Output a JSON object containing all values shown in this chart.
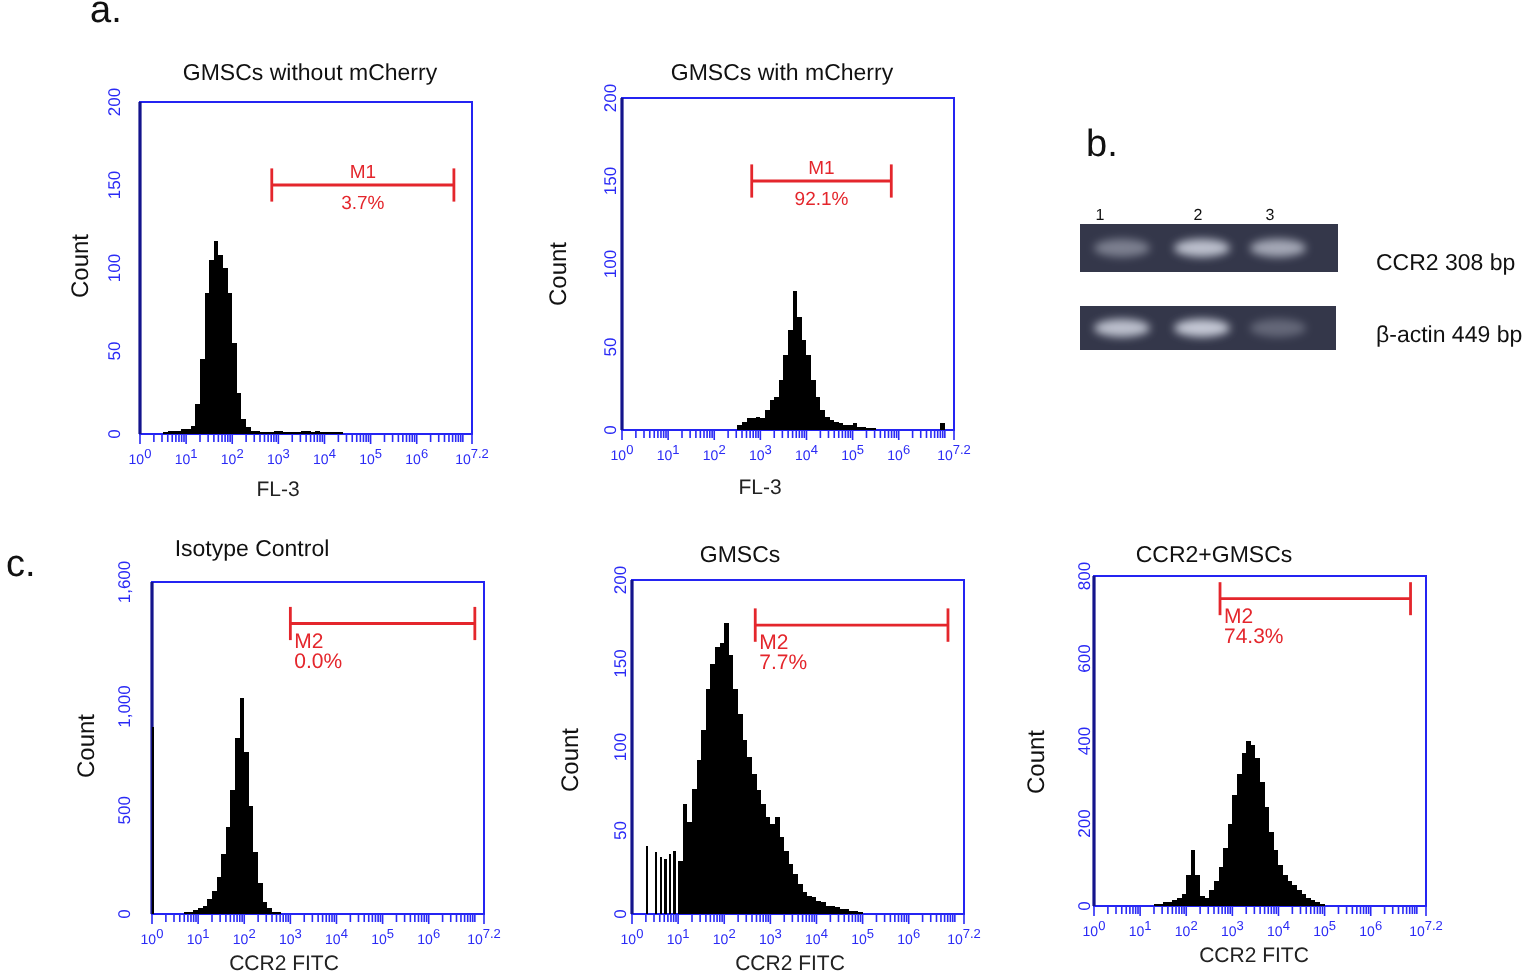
{
  "chart_data": [
    {
      "type": "histogram",
      "title": "GMSCs without mCherry",
      "xlabel": "FL-3",
      "ylabel": "Count",
      "log": "x",
      "xlim": [
        1,
        15800000
      ],
      "ylim": [
        0,
        200
      ],
      "xticks": [
        {
          "value": 1,
          "label": "10$^{0}$"
        },
        {
          "value": 2,
          "label": null
        },
        {
          "value": 3,
          "label": null
        },
        {
          "value": 4,
          "label": null
        },
        {
          "value": 5,
          "label": null
        },
        {
          "value": 6,
          "label": null
        },
        {
          "value": 7,
          "label": null
        },
        {
          "value": 8,
          "label": null
        },
        {
          "value": 9,
          "label": null
        },
        {
          "value": 10,
          "label": "10$^{1}$"
        },
        {
          "value": 20,
          "label": null
        },
        {
          "value": 30,
          "label": null
        },
        {
          "value": 40,
          "label": null
        },
        {
          "value": 50,
          "label": null
        },
        {
          "value": 60,
          "label": null
        },
        {
          "value": 70,
          "label": null
        },
        {
          "value": 80,
          "label": null
        },
        {
          "value": 90,
          "label": null
        },
        {
          "value": 100,
          "label": "10$^{2}$"
        },
        {
          "value": 200,
          "label": null
        },
        {
          "value": 300,
          "label": null
        },
        {
          "value": 400,
          "label": null
        },
        {
          "value": 500,
          "label": null
        },
        {
          "value": 600,
          "label": null
        },
        {
          "value": 700,
          "label": null
        },
        {
          "value": 800,
          "label": null
        },
        {
          "value": 900,
          "label": null
        },
        {
          "value": 1000,
          "label": "10$^{3}$"
        },
        {
          "value": 2000,
          "label": null
        },
        {
          "value": 3000,
          "label": null
        },
        {
          "value": 4000,
          "label": null
        },
        {
          "value": 5000,
          "label": null
        },
        {
          "value": 6000,
          "label": null
        },
        {
          "value": 7000,
          "label": null
        },
        {
          "value": 8000,
          "label": null
        },
        {
          "value": 9000,
          "label": null
        },
        {
          "value": 10000,
          "label": "10$^{4}$"
        },
        {
          "value": 20000,
          "label": null
        },
        {
          "value": 30000,
          "label": null
        },
        {
          "value": 40000,
          "label": null
        },
        {
          "value": 50000,
          "label": null
        },
        {
          "value": 60000,
          "label": null
        },
        {
          "value": 70000,
          "label": null
        },
        {
          "value": 80000,
          "label": null
        },
        {
          "value": 90000,
          "label": null
        },
        {
          "value": 100000,
          "label": "10$^{5}$"
        },
        {
          "value": 200000,
          "label": null
        },
        {
          "value": 300000,
          "label": null
        },
        {
          "value": 400000,
          "label": null
        },
        {
          "value": 500000,
          "label": null
        },
        {
          "value": 600000,
          "label": null
        },
        {
          "value": 700000,
          "label": null
        },
        {
          "value": 800000,
          "label": null
        },
        {
          "value": 900000,
          "label": null
        },
        {
          "value": 1000000,
          "label": "10$^{6}$"
        },
        {
          "value": 2000000,
          "label": null
        },
        {
          "value": 3000000,
          "label": null
        },
        {
          "value": 4000000,
          "label": null
        },
        {
          "value": 5000000,
          "label": null
        },
        {
          "value": 6000000,
          "label": null
        },
        {
          "value": 7000000,
          "label": null
        },
        {
          "value": 8000000,
          "label": null
        },
        {
          "value": 9000000,
          "label": null
        },
        {
          "value": 10000000,
          "label": null
        },
        {
          "value": 15800000,
          "label": "10$^{7.2}$"
        }
      ],
      "yticks": [
        0,
        50,
        100,
        150,
        200
      ],
      "bins": [
        3.16,
        3.98,
        5.01,
        6.31,
        7.94,
        10,
        12.6,
        15.8,
        20,
        25.1,
        31.6,
        39.8,
        50.1,
        63.1,
        79.4,
        100,
        126,
        158,
        200,
        251,
        316,
        398,
        501,
        631,
        794,
        1000,
        1260,
        1580,
        2000,
        2510,
        3160,
        3980,
        5010,
        6310,
        7940,
        10000,
        12600,
        15800,
        20000,
        25100
      ],
      "series": [
        {
          "type": "histogram",
          "color": "#000000",
          "values": [
            1,
            2,
            2,
            2,
            3,
            3,
            5,
            18,
            45,
            85,
            105,
            116,
            108,
            100,
            85,
            55,
            25,
            9,
            4,
            2,
            2,
            1,
            1,
            1,
            2,
            2,
            1,
            1,
            1,
            1,
            2,
            2,
            1,
            2,
            1,
            1,
            1,
            1,
            1
          ]
        },
        {
          "type": "line",
          "name": "M1",
          "color": "#e4262c",
          "x": [
            720,
            6400000
          ],
          "values": [
            150,
            150
          ],
          "errors": [
            10,
            10
          ]
        }
      ],
      "annotations": [
        "a.",
        "3.7%"
      ]
    },
    {
      "type": "histogram",
      "title": "GMSCs with mCherry",
      "xlabel": "FL-3",
      "ylabel": "Count",
      "log": "x",
      "xlim": [
        1,
        15800000
      ],
      "ylim": [
        0,
        200
      ],
      "xticks": [
        {
          "value": 1,
          "label": "10$^{0}$"
        },
        {
          "value": 2,
          "label": null
        },
        {
          "value": 3,
          "label": null
        },
        {
          "value": 4,
          "label": null
        },
        {
          "value": 5,
          "label": null
        },
        {
          "value": 6,
          "label": null
        },
        {
          "value": 7,
          "label": null
        },
        {
          "value": 8,
          "label": null
        },
        {
          "value": 9,
          "label": null
        },
        {
          "value": 10,
          "label": "10$^{1}$"
        },
        {
          "value": 20,
          "label": null
        },
        {
          "value": 30,
          "label": null
        },
        {
          "value": 40,
          "label": null
        },
        {
          "value": 50,
          "label": null
        },
        {
          "value": 60,
          "label": null
        },
        {
          "value": 70,
          "label": null
        },
        {
          "value": 80,
          "label": null
        },
        {
          "value": 90,
          "label": null
        },
        {
          "value": 100,
          "label": "10$^{2}$"
        },
        {
          "value": 200,
          "label": null
        },
        {
          "value": 300,
          "label": null
        },
        {
          "value": 400,
          "label": null
        },
        {
          "value": 500,
          "label": null
        },
        {
          "value": 600,
          "label": null
        },
        {
          "value": 700,
          "label": null
        },
        {
          "value": 800,
          "label": null
        },
        {
          "value": 900,
          "label": null
        },
        {
          "value": 1000,
          "label": "10$^{3}$"
        },
        {
          "value": 2000,
          "label": null
        },
        {
          "value": 3000,
          "label": null
        },
        {
          "value": 4000,
          "label": null
        },
        {
          "value": 5000,
          "label": null
        },
        {
          "value": 6000,
          "label": null
        },
        {
          "value": 7000,
          "label": null
        },
        {
          "value": 8000,
          "label": null
        },
        {
          "value": 9000,
          "label": null
        },
        {
          "value": 10000,
          "label": "10$^{4}$"
        },
        {
          "value": 20000,
          "label": null
        },
        {
          "value": 30000,
          "label": null
        },
        {
          "value": 40000,
          "label": null
        },
        {
          "value": 50000,
          "label": null
        },
        {
          "value": 60000,
          "label": null
        },
        {
          "value": 70000,
          "label": null
        },
        {
          "value": 80000,
          "label": null
        },
        {
          "value": 90000,
          "label": null
        },
        {
          "value": 100000,
          "label": "10$^{5}$"
        },
        {
          "value": 200000,
          "label": null
        },
        {
          "value": 300000,
          "label": null
        },
        {
          "value": 400000,
          "label": null
        },
        {
          "value": 500000,
          "label": null
        },
        {
          "value": 600000,
          "label": null
        },
        {
          "value": 700000,
          "label": null
        },
        {
          "value": 800000,
          "label": null
        },
        {
          "value": 900000,
          "label": null
        },
        {
          "value": 1000000,
          "label": "10$^{6}$"
        },
        {
          "value": 2000000,
          "label": null
        },
        {
          "value": 3000000,
          "label": null
        },
        {
          "value": 4000000,
          "label": null
        },
        {
          "value": 5000000,
          "label": null
        },
        {
          "value": 6000000,
          "label": null
        },
        {
          "value": 7000000,
          "label": null
        },
        {
          "value": 8000000,
          "label": null
        },
        {
          "value": 9000000,
          "label": null
        },
        {
          "value": 10000000,
          "label": null
        },
        {
          "value": 15800000,
          "label": "10$^{7.2}$"
        }
      ],
      "yticks": [
        0,
        50,
        100,
        150,
        200
      ],
      "bins": [
        316,
        398,
        501,
        631,
        794,
        1000,
        1260,
        1580,
        2000,
        2510,
        3160,
        3980,
        5010,
        6310,
        7940,
        10000,
        12600,
        15800,
        20000,
        25100,
        31600,
        39800,
        50100,
        63100,
        79400,
        100000,
        126000,
        158000,
        200000,
        251000,
        316000,
        7940000,
        10000000
      ],
      "series": [
        {
          "type": "histogram",
          "color": "#000000",
          "values": [
            3,
            5,
            7,
            7,
            8,
            7,
            12,
            18,
            20,
            30,
            45,
            60,
            84,
            68,
            54,
            45,
            30,
            20,
            12,
            8,
            6,
            5,
            4,
            3,
            3,
            4,
            2,
            2,
            1,
            1,
            0,
            4
          ]
        },
        {
          "type": "line",
          "name": "M1",
          "color": "#e4262c",
          "x": [
            650,
            690000
          ],
          "values": [
            150,
            150
          ],
          "errors": [
            10,
            10
          ]
        }
      ],
      "annotations": [
        "92.1%"
      ]
    },
    {
      "type": "other",
      "annotations": [
        "b."
      ],
      "categories": [
        "1",
        "2",
        "3"
      ],
      "y_categories": [
        "CCR2 308 bp",
        "β-actin 449 bp"
      ]
    },
    {
      "type": "histogram",
      "title": "Isotype Control",
      "xlabel": "CCR2 FITC",
      "ylabel": "Count",
      "log": "x",
      "xlim": [
        1,
        15800000
      ],
      "ylim": [
        0,
        1600
      ],
      "xticks": [
        {
          "value": 1,
          "label": "10$^{0}$"
        },
        {
          "value": 2,
          "label": null
        },
        {
          "value": 3,
          "label": null
        },
        {
          "value": 4,
          "label": null
        },
        {
          "value": 5,
          "label": null
        },
        {
          "value": 6,
          "label": null
        },
        {
          "value": 7,
          "label": null
        },
        {
          "value": 8,
          "label": null
        },
        {
          "value": 9,
          "label": null
        },
        {
          "value": 10,
          "label": "10$^{1}$"
        },
        {
          "value": 20,
          "label": null
        },
        {
          "value": 30,
          "label": null
        },
        {
          "value": 40,
          "label": null
        },
        {
          "value": 50,
          "label": null
        },
        {
          "value": 60,
          "label": null
        },
        {
          "value": 70,
          "label": null
        },
        {
          "value": 80,
          "label": null
        },
        {
          "value": 90,
          "label": null
        },
        {
          "value": 100,
          "label": "10$^{2}$"
        },
        {
          "value": 200,
          "label": null
        },
        {
          "value": 300,
          "label": null
        },
        {
          "value": 400,
          "label": null
        },
        {
          "value": 500,
          "label": null
        },
        {
          "value": 600,
          "label": null
        },
        {
          "value": 700,
          "label": null
        },
        {
          "value": 800,
          "label": null
        },
        {
          "value": 900,
          "label": null
        },
        {
          "value": 1000,
          "label": "10$^{3}$"
        },
        {
          "value": 2000,
          "label": null
        },
        {
          "value": 3000,
          "label": null
        },
        {
          "value": 4000,
          "label": null
        },
        {
          "value": 5000,
          "label": null
        },
        {
          "value": 6000,
          "label": null
        },
        {
          "value": 7000,
          "label": null
        },
        {
          "value": 8000,
          "label": null
        },
        {
          "value": 9000,
          "label": null
        },
        {
          "value": 10000,
          "label": "10$^{4}$"
        },
        {
          "value": 20000,
          "label": null
        },
        {
          "value": 30000,
          "label": null
        },
        {
          "value": 40000,
          "label": null
        },
        {
          "value": 50000,
          "label": null
        },
        {
          "value": 60000,
          "label": null
        },
        {
          "value": 70000,
          "label": null
        },
        {
          "value": 80000,
          "label": null
        },
        {
          "value": 90000,
          "label": null
        },
        {
          "value": 100000,
          "label": "10$^{5}$"
        },
        {
          "value": 200000,
          "label": null
        },
        {
          "value": 300000,
          "label": null
        },
        {
          "value": 400000,
          "label": null
        },
        {
          "value": 500000,
          "label": null
        },
        {
          "value": 600000,
          "label": null
        },
        {
          "value": 700000,
          "label": null
        },
        {
          "value": 800000,
          "label": null
        },
        {
          "value": 900000,
          "label": null
        },
        {
          "value": 1000000,
          "label": "10$^{6}$"
        },
        {
          "value": 2000000,
          "label": null
        },
        {
          "value": 3000000,
          "label": null
        },
        {
          "value": 4000000,
          "label": null
        },
        {
          "value": 5000000,
          "label": null
        },
        {
          "value": 6000000,
          "label": null
        },
        {
          "value": 7000000,
          "label": null
        },
        {
          "value": 8000000,
          "label": null
        },
        {
          "value": 9000000,
          "label": null
        },
        {
          "value": 10000000,
          "label": null
        },
        {
          "value": 15800000,
          "label": "10$^{7.2}$"
        }
      ],
      "yticks": [
        0,
        500,
        {
          "value": 1000,
          "label": "1,000"
        },
        {
          "value": 1600,
          "label": "1,600"
        }
      ],
      "bins": [
        1,
        1.12,
        5.01,
        6.31,
        7.94,
        10,
        12.6,
        15.8,
        20,
        25.1,
        31.6,
        39.8,
        50.1,
        63.1,
        79.4,
        100,
        126,
        158,
        200,
        251,
        316,
        398,
        501,
        631
      ],
      "series": [
        {
          "type": "histogram",
          "color": "#000000",
          "values": [
            900,
            0,
            10,
            10,
            20,
            30,
            40,
            70,
            110,
            180,
            290,
            420,
            600,
            850,
            1040,
            780,
            520,
            300,
            150,
            60,
            30,
            10,
            10
          ]
        },
        {
          "type": "line",
          "name": "M2",
          "color": "#e4262c",
          "x": [
            1000,
            10000000
          ],
          "values": [
            1400,
            1400
          ],
          "errors": [
            80,
            80
          ]
        }
      ],
      "annotations": [
        "c.",
        "0.0%"
      ]
    },
    {
      "type": "histogram",
      "title": "GMSCs",
      "xlabel": "CCR2 FITC",
      "ylabel": "Count",
      "log": "x",
      "xlim": [
        1,
        15800000
      ],
      "ylim": [
        0,
        200
      ],
      "xticks": [
        {
          "value": 1,
          "label": "10$^{0}$"
        },
        {
          "value": 2,
          "label": null
        },
        {
          "value": 3,
          "label": null
        },
        {
          "value": 4,
          "label": null
        },
        {
          "value": 5,
          "label": null
        },
        {
          "value": 6,
          "label": null
        },
        {
          "value": 7,
          "label": null
        },
        {
          "value": 8,
          "label": null
        },
        {
          "value": 9,
          "label": null
        },
        {
          "value": 10,
          "label": "10$^{1}$"
        },
        {
          "value": 20,
          "label": null
        },
        {
          "value": 30,
          "label": null
        },
        {
          "value": 40,
          "label": null
        },
        {
          "value": 50,
          "label": null
        },
        {
          "value": 60,
          "label": null
        },
        {
          "value": 70,
          "label": null
        },
        {
          "value": 80,
          "label": null
        },
        {
          "value": 90,
          "label": null
        },
        {
          "value": 100,
          "label": "10$^{2}$"
        },
        {
          "value": 200,
          "label": null
        },
        {
          "value": 300,
          "label": null
        },
        {
          "value": 400,
          "label": null
        },
        {
          "value": 500,
          "label": null
        },
        {
          "value": 600,
          "label": null
        },
        {
          "value": 700,
          "label": null
        },
        {
          "value": 800,
          "label": null
        },
        {
          "value": 900,
          "label": null
        },
        {
          "value": 1000,
          "label": "10$^{3}$"
        },
        {
          "value": 2000,
          "label": null
        },
        {
          "value": 3000,
          "label": null
        },
        {
          "value": 4000,
          "label": null
        },
        {
          "value": 5000,
          "label": null
        },
        {
          "value": 6000,
          "label": null
        },
        {
          "value": 7000,
          "label": null
        },
        {
          "value": 8000,
          "label": null
        },
        {
          "value": 9000,
          "label": null
        },
        {
          "value": 10000,
          "label": "10$^{4}$"
        },
        {
          "value": 20000,
          "label": null
        },
        {
          "value": 30000,
          "label": null
        },
        {
          "value": 40000,
          "label": null
        },
        {
          "value": 50000,
          "label": null
        },
        {
          "value": 60000,
          "label": null
        },
        {
          "value": 70000,
          "label": null
        },
        {
          "value": 80000,
          "label": null
        },
        {
          "value": 90000,
          "label": null
        },
        {
          "value": 100000,
          "label": "10$^{5}$"
        },
        {
          "value": 200000,
          "label": null
        },
        {
          "value": 300000,
          "label": null
        },
        {
          "value": 400000,
          "label": null
        },
        {
          "value": 500000,
          "label": null
        },
        {
          "value": 600000,
          "label": null
        },
        {
          "value": 700000,
          "label": null
        },
        {
          "value": 800000,
          "label": null
        },
        {
          "value": 900000,
          "label": null
        },
        {
          "value": 1000000,
          "label": "10$^{6}$"
        },
        {
          "value": 2000000,
          "label": null
        },
        {
          "value": 3000000,
          "label": null
        },
        {
          "value": 4000000,
          "label": null
        },
        {
          "value": 5000000,
          "label": null
        },
        {
          "value": 6000000,
          "label": null
        },
        {
          "value": 7000000,
          "label": null
        },
        {
          "value": 8000000,
          "label": null
        },
        {
          "value": 9000000,
          "label": null
        },
        {
          "value": 10000000,
          "label": null
        },
        {
          "value": 15800000,
          "label": "10$^{7.2}$"
        }
      ],
      "yticks": [
        0,
        50,
        100,
        150,
        200
      ],
      "bins": [
        2,
        2.24,
        3.16,
        3.55,
        3.98,
        4.47,
        5.01,
        5.62,
        6.31,
        7.08,
        7.94,
        8.91,
        10,
        12.6,
        15.8,
        20,
        25.1,
        31.6,
        39.8,
        50.1,
        63.1,
        79.4,
        100,
        126,
        158,
        200,
        251,
        316,
        398,
        501,
        631,
        794,
        1000,
        1260,
        1580,
        2000,
        2510,
        3160,
        3980,
        5010,
        6310,
        7940,
        10000,
        12600,
        15800,
        20000,
        25100,
        31600,
        39800,
        50100,
        63100,
        79400,
        100000
      ],
      "series": [
        {
          "type": "histogram",
          "color": "#000000",
          "values": [
            41,
            0,
            37,
            0,
            34,
            0,
            33,
            0,
            36,
            0,
            38,
            0,
            32,
            66,
            55,
            75,
            92,
            110,
            135,
            150,
            160,
            162,
            174,
            155,
            135,
            120,
            104,
            94,
            84,
            74,
            66,
            58,
            54,
            58,
            46,
            38,
            30,
            24,
            18,
            13,
            11,
            10,
            8,
            7,
            5,
            5,
            4,
            3,
            3,
            2,
            2,
            1
          ]
        },
        {
          "type": "line",
          "name": "M2",
          "color": "#e4262c",
          "x": [
            470,
            7100000
          ],
          "values": [
            173,
            173
          ],
          "errors": [
            10,
            10
          ]
        }
      ],
      "annotations": [
        "7.7%"
      ]
    },
    {
      "type": "histogram",
      "title": "CCR2+GMSCs",
      "xlabel": "CCR2 FITC",
      "ylabel": "Count",
      "log": "x",
      "xlim": [
        1,
        15800000
      ],
      "ylim": [
        0,
        800
      ],
      "xticks": [
        {
          "value": 1,
          "label": "10$^{0}$"
        },
        {
          "value": 2,
          "label": null
        },
        {
          "value": 3,
          "label": null
        },
        {
          "value": 4,
          "label": null
        },
        {
          "value": 5,
          "label": null
        },
        {
          "value": 6,
          "label": null
        },
        {
          "value": 7,
          "label": null
        },
        {
          "value": 8,
          "label": null
        },
        {
          "value": 9,
          "label": null
        },
        {
          "value": 10,
          "label": "10$^{1}$"
        },
        {
          "value": 20,
          "label": null
        },
        {
          "value": 30,
          "label": null
        },
        {
          "value": 40,
          "label": null
        },
        {
          "value": 50,
          "label": null
        },
        {
          "value": 60,
          "label": null
        },
        {
          "value": 70,
          "label": null
        },
        {
          "value": 80,
          "label": null
        },
        {
          "value": 90,
          "label": null
        },
        {
          "value": 100,
          "label": "10$^{2}$"
        },
        {
          "value": 200,
          "label": null
        },
        {
          "value": 300,
          "label": null
        },
        {
          "value": 400,
          "label": null
        },
        {
          "value": 500,
          "label": null
        },
        {
          "value": 600,
          "label": null
        },
        {
          "value": 700,
          "label": null
        },
        {
          "value": 800,
          "label": null
        },
        {
          "value": 900,
          "label": null
        },
        {
          "value": 1000,
          "label": "10$^{3}$"
        },
        {
          "value": 2000,
          "label": null
        },
        {
          "value": 3000,
          "label": null
        },
        {
          "value": 4000,
          "label": null
        },
        {
          "value": 5000,
          "label": null
        },
        {
          "value": 6000,
          "label": null
        },
        {
          "value": 7000,
          "label": null
        },
        {
          "value": 8000,
          "label": null
        },
        {
          "value": 9000,
          "label": null
        },
        {
          "value": 10000,
          "label": "10$^{4}$"
        },
        {
          "value": 20000,
          "label": null
        },
        {
          "value": 30000,
          "label": null
        },
        {
          "value": 40000,
          "label": null
        },
        {
          "value": 50000,
          "label": null
        },
        {
          "value": 60000,
          "label": null
        },
        {
          "value": 70000,
          "label": null
        },
        {
          "value": 80000,
          "label": null
        },
        {
          "value": 90000,
          "label": null
        },
        {
          "value": 100000,
          "label": "10$^{5}$"
        },
        {
          "value": 200000,
          "label": null
        },
        {
          "value": 300000,
          "label": null
        },
        {
          "value": 400000,
          "label": null
        },
        {
          "value": 500000,
          "label": null
        },
        {
          "value": 600000,
          "label": null
        },
        {
          "value": 700000,
          "label": null
        },
        {
          "value": 800000,
          "label": null
        },
        {
          "value": 900000,
          "label": null
        },
        {
          "value": 1000000,
          "label": "10$^{6}$"
        },
        {
          "value": 2000000,
          "label": null
        },
        {
          "value": 3000000,
          "label": null
        },
        {
          "value": 4000000,
          "label": null
        },
        {
          "value": 5000000,
          "label": null
        },
        {
          "value": 6000000,
          "label": null
        },
        {
          "value": 7000000,
          "label": null
        },
        {
          "value": 8000000,
          "label": null
        },
        {
          "value": 9000000,
          "label": null
        },
        {
          "value": 10000000,
          "label": null
        },
        {
          "value": 15800000,
          "label": "10$^{7.2}$"
        }
      ],
      "yticks": [
        0,
        200,
        400,
        600,
        800
      ],
      "bins": [
        20,
        25.1,
        31.6,
        39.8,
        50.1,
        63.1,
        79.4,
        100,
        126,
        158,
        200,
        251,
        316,
        398,
        501,
        631,
        794,
        1000,
        1260,
        1580,
        2000,
        2510,
        3160,
        3980,
        5010,
        6310,
        7940,
        10000,
        12600,
        15800,
        20000,
        25100,
        31600,
        39800,
        50100,
        63100,
        79400,
        100000
      ],
      "series": [
        {
          "type": "histogram",
          "color": "#000000",
          "values": [
            5,
            5,
            10,
            10,
            15,
            20,
            30,
            75,
            135,
            75,
            25,
            20,
            40,
            60,
            95,
            140,
            200,
            270,
            320,
            370,
            400,
            390,
            360,
            300,
            240,
            180,
            135,
            100,
            75,
            60,
            50,
            40,
            30,
            20,
            15,
            10,
            5
          ]
        },
        {
          "type": "line",
          "name": "M2",
          "color": "#e4262c",
          "x": [
            540,
            7300000
          ],
          "values": [
            745,
            745
          ],
          "errors": [
            40,
            40
          ]
        }
      ],
      "annotations": [
        "74.3%"
      ]
    }
  ]
}
